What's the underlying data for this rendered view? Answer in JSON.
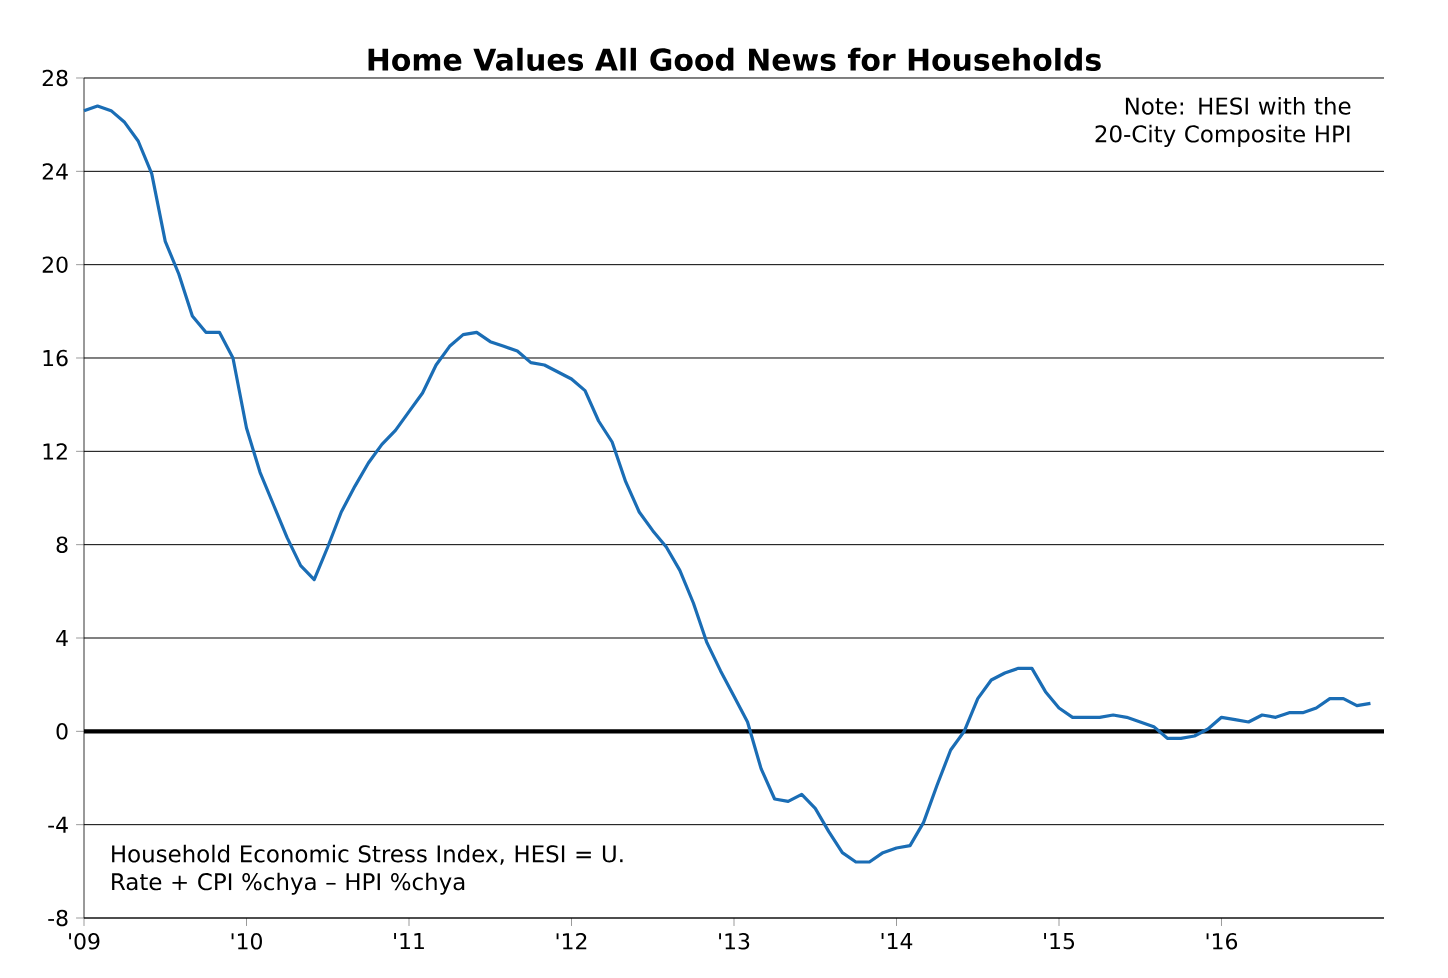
{
  "chart_data": {
    "type": "line",
    "title": "Home Values All Good News for Households",
    "x": [
      "2009-01",
      "2009-02",
      "2009-03",
      "2009-04",
      "2009-05",
      "2009-06",
      "2009-07",
      "2009-08",
      "2009-09",
      "2009-10",
      "2009-11",
      "2009-12",
      "2010-01",
      "2010-02",
      "2010-03",
      "2010-04",
      "2010-05",
      "2010-06",
      "2010-07",
      "2010-08",
      "2010-09",
      "2010-10",
      "2010-11",
      "2010-12",
      "2011-01",
      "2011-02",
      "2011-03",
      "2011-04",
      "2011-05",
      "2011-06",
      "2011-07",
      "2011-08",
      "2011-09",
      "2011-10",
      "2011-11",
      "2011-12",
      "2012-01",
      "2012-02",
      "2012-03",
      "2012-04",
      "2012-05",
      "2012-06",
      "2012-07",
      "2012-08",
      "2012-09",
      "2012-10",
      "2012-11",
      "2012-12",
      "2013-01",
      "2013-02",
      "2013-03",
      "2013-04",
      "2013-05",
      "2013-06",
      "2013-07",
      "2013-08",
      "2013-09",
      "2013-10",
      "2013-11",
      "2013-12",
      "2014-01",
      "2014-02",
      "2014-03",
      "2014-04",
      "2014-05",
      "2014-06",
      "2014-07",
      "2014-08",
      "2014-09",
      "2014-10",
      "2014-11",
      "2014-12",
      "2015-01",
      "2015-02",
      "2015-03",
      "2015-04",
      "2015-05",
      "2015-06",
      "2015-07",
      "2015-08",
      "2015-09",
      "2015-10",
      "2015-11",
      "2015-12",
      "2016-01",
      "2016-02",
      "2016-03",
      "2016-04",
      "2016-05",
      "2016-06",
      "2016-07",
      "2016-08",
      "2016-09",
      "2016-10",
      "2016-11",
      "2016-12"
    ],
    "series": [
      {
        "color": "#1a6db5",
        "values": [
          26.6,
          26.8,
          26.6,
          26.1,
          25.3,
          23.9,
          21.0,
          19.6,
          17.8,
          17.1,
          17.1,
          16.0,
          13.0,
          11.1,
          9.7,
          8.3,
          7.1,
          6.5,
          7.9,
          9.4,
          10.5,
          11.5,
          12.3,
          12.9,
          13.7,
          14.5,
          15.7,
          16.5,
          17.0,
          17.1,
          16.7,
          16.5,
          16.3,
          15.8,
          15.7,
          15.4,
          15.1,
          14.6,
          13.3,
          12.4,
          10.7,
          9.4,
          8.6,
          7.9,
          6.9,
          5.5,
          3.8,
          2.6,
          1.5,
          0.4,
          -1.6,
          -2.9,
          -3.0,
          -2.7,
          -3.3,
          -4.3,
          -5.2,
          -5.6,
          -5.6,
          -5.2,
          -5.0,
          -4.9,
          -3.9,
          -2.3,
          -0.8,
          0.0,
          1.4,
          2.2,
          2.5,
          2.7,
          2.7,
          1.7,
          1.0,
          0.6,
          0.6,
          0.6,
          0.7,
          0.6,
          0.4,
          0.2,
          -0.3,
          -0.3,
          -0.2,
          0.1,
          0.6,
          0.5,
          0.4,
          0.7,
          0.6,
          0.8,
          0.8,
          1.0,
          1.4,
          1.4,
          1.1,
          1.2
        ]
      }
    ],
    "xlim": [
      "2009-01",
      "2017-01"
    ],
    "xticks": [
      {
        "value": "2009-01",
        "label": "'09"
      },
      {
        "value": "2010-01",
        "label": "'10"
      },
      {
        "value": "2011-01",
        "label": "'11"
      },
      {
        "value": "2012-01",
        "label": "'12"
      },
      {
        "value": "2013-01",
        "label": "'13"
      },
      {
        "value": "2014-01",
        "label": "'14"
      },
      {
        "value": "2015-01",
        "label": "'15"
      },
      {
        "value": "2016-01",
        "label": "'16"
      }
    ],
    "ylim": [
      -8,
      28
    ],
    "yticks": [
      -8,
      -4,
      0,
      4,
      8,
      12,
      16,
      20,
      24,
      28
    ],
    "grid": "y",
    "ref_lines": [
      {
        "axis": "y",
        "value": 0,
        "color": "#000000"
      }
    ],
    "annotations": [
      "Note: HESI with the 20-City Composite HPI",
      "Household Economic Stress Index, HESI = U. Rate + CPI %chya – HPI %chya"
    ]
  }
}
